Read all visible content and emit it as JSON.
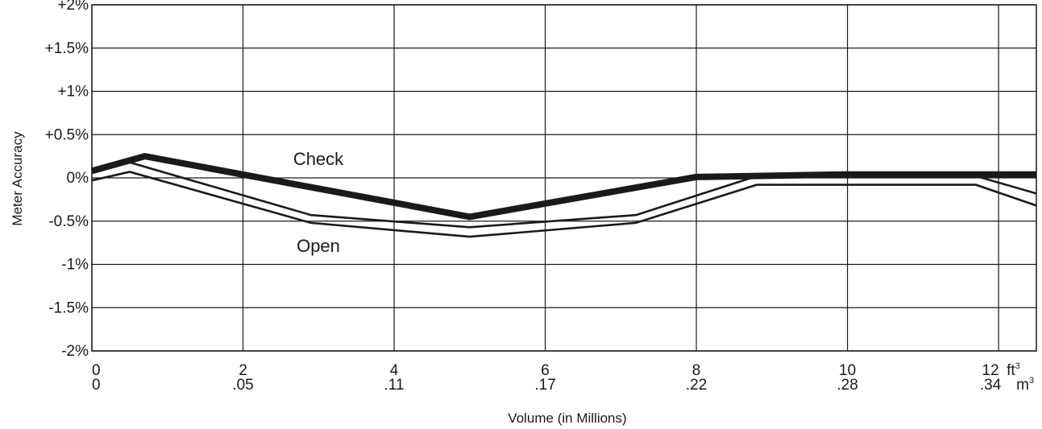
{
  "chart_data": {
    "type": "line",
    "xlabel": "Volume (in Millions)",
    "ylabel": "Meter Accuracy",
    "xlim": [
      0,
      12.5
    ],
    "ylim": [
      -2,
      2
    ],
    "grid": true,
    "x_ticks": [
      {
        "value": 0,
        "top": "0",
        "bottom": "0"
      },
      {
        "value": 2,
        "top": "2",
        "bottom": ".05"
      },
      {
        "value": 4,
        "top": "4",
        "bottom": ".11"
      },
      {
        "value": 6,
        "top": "6",
        "bottom": ".17"
      },
      {
        "value": 8,
        "top": "8",
        "bottom": ".22"
      },
      {
        "value": 10,
        "top": "10",
        "bottom": ".28"
      },
      {
        "value": 12,
        "top": "12",
        "bottom": ".34"
      }
    ],
    "x_units": {
      "top": "ft",
      "bottom": "m",
      "exponent": "3"
    },
    "y_ticks": [
      {
        "value": 2,
        "label": "+2%"
      },
      {
        "value": 1.5,
        "label": "+1.5%"
      },
      {
        "value": 1,
        "label": "+1%"
      },
      {
        "value": 0.5,
        "label": "+0.5%"
      },
      {
        "value": 0,
        "label": "0%"
      },
      {
        "value": -0.5,
        "label": "-0.5%"
      },
      {
        "value": -1,
        "label": "-1%"
      },
      {
        "value": -1.5,
        "label": "-1.5%"
      },
      {
        "value": -2,
        "label": "-2%"
      }
    ],
    "series": [
      {
        "name": "Check",
        "style": "thick-line",
        "color": "#1a1a1a",
        "x": [
          0,
          0.7,
          5.0,
          8.0,
          10.0,
          12.5
        ],
        "y": [
          0.08,
          0.25,
          -0.45,
          0.01,
          0.04,
          0.04
        ]
      },
      {
        "name": "Open",
        "style": "double-line-band",
        "color": "#1a1a1a",
        "x": [
          0,
          0.5,
          2.9,
          5.0,
          7.2,
          8.8,
          11.7,
          12.5
        ],
        "upper": [
          0.08,
          0.18,
          -0.43,
          -0.57,
          -0.43,
          0.02,
          0.02,
          -0.18
        ],
        "lower": [
          -0.03,
          0.07,
          -0.52,
          -0.68,
          -0.52,
          -0.08,
          -0.08,
          -0.32
        ]
      }
    ]
  }
}
